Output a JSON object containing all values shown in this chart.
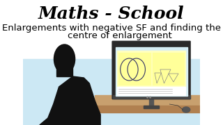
{
  "bg_color": "#ffffff",
  "top_bg_color": "#ffffff",
  "bottom_bg_color": "#cce8f0",
  "title": "Maths - School",
  "title_font": "serif",
  "title_style": "bold italic",
  "subtitle_line1": "Enlargements with negative SF and finding the",
  "subtitle_line2": "centre of enlargement",
  "subtitle_fontsize": 9.5,
  "title_fontsize": 18,
  "silhouette_color": "#111111",
  "monitor_color": "#2a2a2a",
  "screen_color": "#d6eef5",
  "screen_content_bg": "#ffffcc",
  "desk_color": "#c8a06e",
  "light_blue_bg": "#cce8f4"
}
